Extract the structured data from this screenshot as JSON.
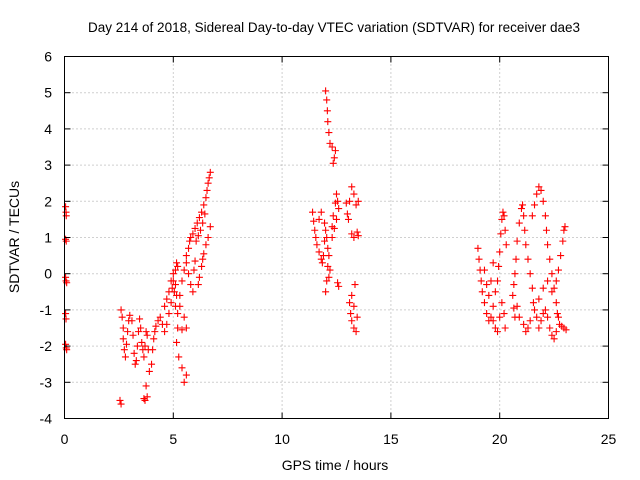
{
  "chart_data": {
    "type": "scatter",
    "title": "Day 214 of 2018, Sidereal Day-to-day VTEC variation (SDTVAR) for receiver dae3",
    "xlabel": "GPS time / hours",
    "ylabel": "SDTVAR / TECUs",
    "xlim": [
      0,
      25
    ],
    "ylim": [
      -4,
      6
    ],
    "xticks": [
      0,
      5,
      10,
      15,
      20,
      25
    ],
    "yticks": [
      -4,
      -3,
      -2,
      -1,
      0,
      1,
      2,
      3,
      4,
      5,
      6
    ],
    "xtick_labels": [
      "0",
      "5",
      "10",
      "15",
      "20",
      "25"
    ],
    "ytick_labels": [
      "-4",
      "-3",
      "-2",
      "-1",
      "0",
      "1",
      "2",
      "3",
      "4",
      "5",
      "6"
    ],
    "grid": true,
    "legend": "none",
    "marker": "plus",
    "series": [
      {
        "name": "SDTVAR",
        "color": "#ff0000",
        "points": [
          [
            0.05,
            1.85
          ],
          [
            0.07,
            1.7
          ],
          [
            0.08,
            1.6
          ],
          [
            0.05,
            0.95
          ],
          [
            0.08,
            0.9
          ],
          [
            0.05,
            -0.1
          ],
          [
            0.07,
            -0.2
          ],
          [
            0.1,
            -0.25
          ],
          [
            0.05,
            -1.1
          ],
          [
            0.07,
            -1.25
          ],
          [
            0.05,
            -1.95
          ],
          [
            0.08,
            -2.05
          ],
          [
            0.1,
            -2.1
          ],
          [
            2.55,
            -3.5
          ],
          [
            2.6,
            -3.6
          ],
          [
            2.6,
            -1.0
          ],
          [
            2.65,
            -1.2
          ],
          [
            2.7,
            -1.5
          ],
          [
            2.7,
            -1.8
          ],
          [
            2.75,
            -2.1
          ],
          [
            2.8,
            -2.3
          ],
          [
            2.85,
            -1.95
          ],
          [
            2.9,
            -1.6
          ],
          [
            2.95,
            -1.3
          ],
          [
            3.0,
            -1.15
          ],
          [
            3.1,
            -1.3
          ],
          [
            3.15,
            -1.7
          ],
          [
            3.2,
            -2.2
          ],
          [
            3.25,
            -2.5
          ],
          [
            3.3,
            -2.4
          ],
          [
            3.35,
            -2.0
          ],
          [
            3.4,
            -1.6
          ],
          [
            3.45,
            -1.25
          ],
          [
            3.5,
            -1.5
          ],
          [
            3.55,
            -1.9
          ],
          [
            3.6,
            -2.1
          ],
          [
            3.65,
            -2.3
          ],
          [
            3.7,
            -2.0
          ],
          [
            3.75,
            -1.6
          ],
          [
            3.8,
            -1.7
          ],
          [
            3.85,
            -2.1
          ],
          [
            3.9,
            -2.7
          ],
          [
            3.75,
            -3.1
          ],
          [
            3.65,
            -3.45
          ],
          [
            3.7,
            -3.5
          ],
          [
            3.8,
            -3.4
          ],
          [
            4.0,
            -2.5
          ],
          [
            4.05,
            -2.1
          ],
          [
            4.1,
            -1.8
          ],
          [
            4.15,
            -1.6
          ],
          [
            4.2,
            -1.45
          ],
          [
            4.3,
            -1.3
          ],
          [
            4.4,
            -1.2
          ],
          [
            4.5,
            -1.4
          ],
          [
            4.6,
            -1.6
          ],
          [
            4.7,
            -1.4
          ],
          [
            4.8,
            -1.1
          ],
          [
            4.9,
            -0.8
          ],
          [
            4.95,
            -0.4
          ],
          [
            5.0,
            -0.2
          ],
          [
            5.05,
            -0.5
          ],
          [
            5.1,
            -0.9
          ],
          [
            5.2,
            -1.1
          ],
          [
            5.3,
            -0.6
          ],
          [
            5.4,
            -0.2
          ],
          [
            5.5,
            0.1
          ],
          [
            5.6,
            0.3
          ],
          [
            5.7,
            0.0
          ],
          [
            5.8,
            -0.3
          ],
          [
            5.9,
            -0.5
          ],
          [
            5.2,
            -1.5
          ],
          [
            5.4,
            -1.55
          ],
          [
            5.6,
            -1.5
          ],
          [
            5.15,
            -1.9
          ],
          [
            5.25,
            -2.3
          ],
          [
            5.4,
            -2.6
          ],
          [
            5.5,
            -3.0
          ],
          [
            5.6,
            -2.8
          ],
          [
            4.6,
            -0.9
          ],
          [
            4.7,
            -0.7
          ],
          [
            4.8,
            -0.5
          ],
          [
            4.9,
            -0.2
          ],
          [
            5.0,
            0.0
          ],
          [
            5.1,
            0.1
          ],
          [
            5.15,
            0.3
          ],
          [
            5.2,
            0.2
          ],
          [
            5.1,
            -0.3
          ],
          [
            5.15,
            -0.6
          ],
          [
            5.3,
            -0.9
          ],
          [
            5.5,
            -1.2
          ],
          [
            5.6,
            0.5
          ],
          [
            5.7,
            0.7
          ],
          [
            5.75,
            0.9
          ],
          [
            5.8,
            1.0
          ],
          [
            5.9,
            1.1
          ],
          [
            6.0,
            1.25
          ],
          [
            6.1,
            1.4
          ],
          [
            6.2,
            1.55
          ],
          [
            6.3,
            1.7
          ],
          [
            6.4,
            1.9
          ],
          [
            6.5,
            2.1
          ],
          [
            6.55,
            2.3
          ],
          [
            6.6,
            2.5
          ],
          [
            6.65,
            2.65
          ],
          [
            6.7,
            2.8
          ],
          [
            6.05,
            0.9
          ],
          [
            6.15,
            1.05
          ],
          [
            6.25,
            1.2
          ],
          [
            6.35,
            1.4
          ],
          [
            6.45,
            1.65
          ],
          [
            6.3,
            0.2
          ],
          [
            6.35,
            0.4
          ],
          [
            6.4,
            0.55
          ],
          [
            6.5,
            0.8
          ],
          [
            6.6,
            1.0
          ],
          [
            6.7,
            1.3
          ],
          [
            6.2,
            -0.1
          ],
          [
            6.15,
            -0.3
          ],
          [
            5.95,
            0.1
          ],
          [
            6.0,
            0.35
          ],
          [
            11.4,
            1.7
          ],
          [
            11.45,
            1.45
          ],
          [
            11.5,
            1.2
          ],
          [
            11.55,
            1.0
          ],
          [
            11.6,
            0.8
          ],
          [
            11.7,
            0.6
          ],
          [
            11.8,
            0.4
          ],
          [
            11.85,
            0.3
          ],
          [
            11.9,
            0.5
          ],
          [
            11.95,
            0.9
          ],
          [
            12.0,
            1.2
          ],
          [
            12.05,
            1.0
          ],
          [
            12.1,
            0.7
          ],
          [
            12.15,
            0.5
          ],
          [
            12.1,
            0.2
          ],
          [
            12.05,
            -0.2
          ],
          [
            12.0,
            -0.5
          ],
          [
            12.15,
            -0.1
          ],
          [
            12.2,
            0.1
          ],
          [
            12.3,
            1.3
          ],
          [
            12.35,
            1.6
          ],
          [
            12.45,
            1.95
          ],
          [
            12.5,
            2.2
          ],
          [
            12.55,
            2.0
          ],
          [
            12.6,
            1.8
          ],
          [
            12.5,
            1.5
          ],
          [
            12.4,
            1.25
          ],
          [
            12.3,
            1.0
          ],
          [
            12.6,
            -0.35
          ],
          [
            12.55,
            -0.25
          ],
          [
            11.7,
            1.5
          ],
          [
            11.8,
            1.7
          ],
          [
            11.95,
            1.4
          ],
          [
            12.0,
            5.05
          ],
          [
            12.05,
            4.8
          ],
          [
            12.08,
            4.5
          ],
          [
            12.1,
            4.2
          ],
          [
            12.15,
            3.9
          ],
          [
            12.2,
            3.6
          ],
          [
            12.3,
            3.5
          ],
          [
            12.4,
            3.2
          ],
          [
            12.45,
            3.4
          ],
          [
            12.35,
            3.05
          ],
          [
            12.95,
            1.95
          ],
          [
            13.0,
            1.65
          ],
          [
            13.05,
            1.5
          ],
          [
            13.1,
            2.0
          ],
          [
            13.2,
            2.4
          ],
          [
            13.3,
            2.2
          ],
          [
            13.4,
            1.9
          ],
          [
            13.5,
            2.0
          ],
          [
            13.2,
            1.1
          ],
          [
            13.3,
            1.0
          ],
          [
            13.45,
            1.15
          ],
          [
            13.5,
            1.05
          ],
          [
            13.1,
            -0.8
          ],
          [
            13.15,
            -1.1
          ],
          [
            13.2,
            -1.3
          ],
          [
            13.3,
            -1.5
          ],
          [
            13.4,
            -1.6
          ],
          [
            13.45,
            -1.2
          ],
          [
            13.3,
            -0.9
          ],
          [
            13.2,
            -0.6
          ],
          [
            13.35,
            -0.3
          ],
          [
            19.0,
            0.7
          ],
          [
            19.05,
            0.4
          ],
          [
            19.1,
            0.1
          ],
          [
            19.15,
            -0.2
          ],
          [
            19.2,
            -0.5
          ],
          [
            19.3,
            -0.8
          ],
          [
            19.4,
            -1.1
          ],
          [
            19.5,
            -1.3
          ],
          [
            19.6,
            -1.2
          ],
          [
            19.7,
            -0.9
          ],
          [
            19.8,
            -0.5
          ],
          [
            19.9,
            -0.2
          ],
          [
            19.95,
            0.2
          ],
          [
            20.0,
            0.6
          ],
          [
            20.05,
            1.1
          ],
          [
            20.1,
            1.5
          ],
          [
            20.15,
            1.7
          ],
          [
            20.2,
            1.6
          ],
          [
            20.25,
            1.2
          ],
          [
            20.3,
            0.8
          ],
          [
            19.7,
            -1.3
          ],
          [
            19.8,
            -1.5
          ],
          [
            19.9,
            -1.6
          ],
          [
            20.0,
            -1.2
          ],
          [
            20.1,
            -0.8
          ],
          [
            20.2,
            -1.1
          ],
          [
            20.25,
            -1.5
          ],
          [
            19.3,
            0.1
          ],
          [
            19.4,
            -0.3
          ],
          [
            19.5,
            -0.6
          ],
          [
            19.6,
            -0.2
          ],
          [
            19.7,
            0.3
          ],
          [
            20.6,
            -0.6
          ],
          [
            20.65,
            -0.3
          ],
          [
            20.7,
            0.0
          ],
          [
            20.75,
            0.4
          ],
          [
            20.8,
            0.9
          ],
          [
            20.9,
            1.4
          ],
          [
            21.0,
            1.8
          ],
          [
            21.05,
            1.9
          ],
          [
            21.1,
            1.6
          ],
          [
            21.15,
            1.2
          ],
          [
            21.2,
            0.8
          ],
          [
            21.3,
            0.4
          ],
          [
            21.4,
            0.0
          ],
          [
            21.5,
            -0.4
          ],
          [
            21.55,
            -0.8
          ],
          [
            21.6,
            -1.0
          ],
          [
            21.4,
            -1.3
          ],
          [
            21.3,
            -1.5
          ],
          [
            21.2,
            -1.6
          ],
          [
            21.1,
            -1.4
          ],
          [
            20.9,
            -1.2
          ],
          [
            20.8,
            -0.9
          ],
          [
            20.7,
            -1.2
          ],
          [
            20.65,
            -0.95
          ],
          [
            21.5,
            1.6
          ],
          [
            21.6,
            1.9
          ],
          [
            21.7,
            2.2
          ],
          [
            21.8,
            2.4
          ],
          [
            21.9,
            2.3
          ],
          [
            22.0,
            2.0
          ],
          [
            22.1,
            1.6
          ],
          [
            22.15,
            1.2
          ],
          [
            22.2,
            0.8
          ],
          [
            22.3,
            0.4
          ],
          [
            22.4,
            0.0
          ],
          [
            22.5,
            -0.4
          ],
          [
            22.6,
            -0.8
          ],
          [
            22.65,
            -1.1
          ],
          [
            22.7,
            -1.2
          ],
          [
            22.6,
            -1.6
          ],
          [
            22.5,
            -1.8
          ],
          [
            22.4,
            -1.7
          ],
          [
            22.3,
            -1.5
          ],
          [
            22.2,
            -1.2
          ],
          [
            22.1,
            -1.0
          ],
          [
            22.0,
            -1.1
          ],
          [
            21.9,
            -1.3
          ],
          [
            21.8,
            -1.5
          ],
          [
            21.7,
            -1.2
          ],
          [
            21.8,
            -0.7
          ],
          [
            22.0,
            -0.4
          ],
          [
            22.2,
            -0.2
          ],
          [
            22.4,
            -0.5
          ],
          [
            22.6,
            -0.2
          ],
          [
            22.7,
            0.1
          ],
          [
            22.8,
            0.5
          ],
          [
            22.9,
            0.9
          ],
          [
            22.95,
            1.2
          ],
          [
            23.0,
            1.3
          ],
          [
            22.85,
            -1.45
          ],
          [
            22.95,
            -1.5
          ],
          [
            23.05,
            -1.55
          ],
          [
            22.75,
            -1.4
          ]
        ]
      }
    ]
  }
}
